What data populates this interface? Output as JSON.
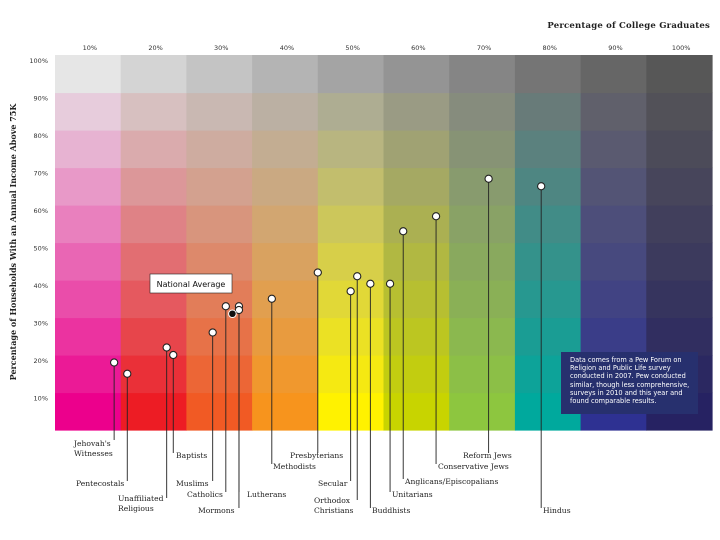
{
  "chart_data": {
    "type": "scatter",
    "title": "",
    "xlabel": "Percentage of College Graduates",
    "ylabel": "Percentage of Households With an Annual Income Above 75K",
    "xlim": [
      0,
      100
    ],
    "ylim": [
      0,
      100
    ],
    "x_ticks": [
      "10%",
      "20%",
      "30%",
      "40%",
      "50%",
      "60%",
      "70%",
      "80%",
      "90%",
      "100%"
    ],
    "y_ticks": [
      "10%",
      "20%",
      "30%",
      "40%",
      "50%",
      "60%",
      "70%",
      "80%",
      "90%",
      "100%"
    ],
    "grid": true,
    "points": [
      {
        "label": "Jehovah's Witnesses",
        "x": 9,
        "y": 18
      },
      {
        "label": "Pentecostals",
        "x": 11,
        "y": 15
      },
      {
        "label": "Unaffiliated Religious",
        "x": 17,
        "y": 22
      },
      {
        "label": "Baptists",
        "x": 18,
        "y": 20
      },
      {
        "label": "Muslims",
        "x": 24,
        "y": 26
      },
      {
        "label": "Catholics",
        "x": 26,
        "y": 33
      },
      {
        "label": "Mormons",
        "x": 28,
        "y": 33
      },
      {
        "label": "Lutherans",
        "x": 28,
        "y": 32
      },
      {
        "label": "Methodists",
        "x": 33,
        "y": 35
      },
      {
        "label": "Presbyterians",
        "x": 40,
        "y": 42
      },
      {
        "label": "Secular",
        "x": 45,
        "y": 37
      },
      {
        "label": "Orthodox Christians",
        "x": 46,
        "y": 41
      },
      {
        "label": "Buddhists",
        "x": 48,
        "y": 39
      },
      {
        "label": "Unitarians",
        "x": 51,
        "y": 39
      },
      {
        "label": "Anglicans/Episcopalians",
        "x": 53,
        "y": 53
      },
      {
        "label": "Conservative Jews",
        "x": 58,
        "y": 57
      },
      {
        "label": "Reform Jews",
        "x": 66,
        "y": 67
      },
      {
        "label": "Hindus",
        "x": 74,
        "y": 65
      }
    ],
    "average": {
      "label": "National Average",
      "x": 27,
      "y": 31
    },
    "note": "Data comes from a Pew Forum on Religion and Public Life survey conducted in 2007. Pew conducted similar, though less comprehensive, surveys in 2010 and this year and found comparable results.",
    "colors": {
      "row_bottom": [
        "#ec008c",
        "#ed1c24",
        "#f15a24",
        "#f7941d",
        "#fff200",
        "#c8d400",
        "#8dc63f",
        "#00a99d",
        "#2e3192",
        "#262262"
      ],
      "row_top": [
        "#e6e6e6",
        "#d4d4d4",
        "#c4c4c4",
        "#b4b4b4",
        "#a4a4a4",
        "#949494",
        "#858585",
        "#757575",
        "#666666",
        "#575757"
      ],
      "note_bg": "#27306e"
    }
  }
}
